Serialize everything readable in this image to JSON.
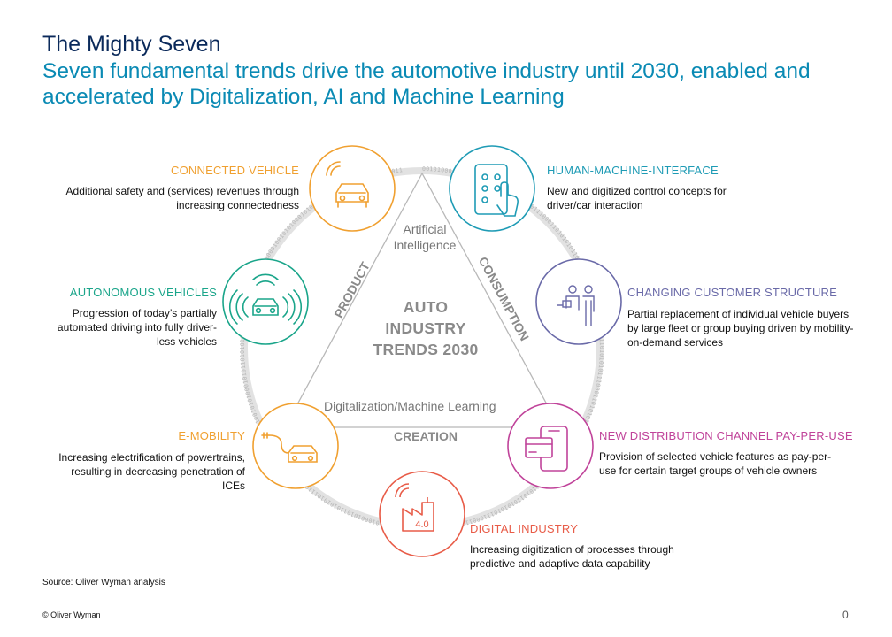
{
  "header": {
    "title": "The Mighty Seven",
    "subtitle": "Seven fundamental trends drive the automotive industry until 2030, enabled and accelerated by Digitalization, AI and Machine Learning"
  },
  "center": {
    "line1": "AUTO",
    "line2": "INDUSTRY",
    "line3": "TRENDS 2030",
    "ai": "Artificial Intelligence",
    "digital": "Digitalization/Machine Learning",
    "side_left": "PRODUCT",
    "side_right": "CONSUMPTION",
    "side_bottom": "CREATION"
  },
  "trends": [
    {
      "label": "CONNECTED VEHICLE",
      "desc": "Additional safety and (services) revenues through increasing connectedness",
      "color": "#f0a030",
      "icon": "connected-car-icon"
    },
    {
      "label": "HUMAN-MACHINE-INTERFACE",
      "desc": "New and digitized control concepts for driver/car interaction",
      "color": "#1e9bb5",
      "icon": "tablet-touch-icon"
    },
    {
      "label": "CHANGING  CUSTOMER STRUCTURE",
      "desc": "Partial replacement  of individual  vehicle buyers by large fleet  or group  buying driven by mobility-on-demand  services",
      "color": "#6a6aa8",
      "icon": "customers-icon"
    },
    {
      "label": "NEW DISTRIBUTION  CHANNEL  PAY-PER-USE",
      "desc": "Provision  of selected vehicle features  as pay-per-use  for certain target groups of vehicle owners",
      "color": "#c0439a",
      "icon": "mobile-payment-icon"
    },
    {
      "label": "DIGITAL  INDUSTRY",
      "desc": "Increasing digitization of processes through predictive  and adaptive  data capability",
      "color": "#e85c48",
      "icon": "factory-4-0-icon"
    },
    {
      "label": "E-MOBILITY",
      "desc": "Increasing electrification of powertrains,  resulting  in decreasing penetration of ICEs",
      "color": "#f0a030",
      "icon": "ev-charging-icon"
    },
    {
      "label": "AUTONOMOUS VEHICLES",
      "desc": "Progression of today’s partially automated driving  into fully driver-less vehicles",
      "color": "#1aa58a",
      "icon": "autonomous-car-icon"
    }
  ],
  "factory_badge": "4.0",
  "binary": "0010100010010101000101011010101011100011010101011",
  "footer": {
    "source": "Source: Oliver Wyman analysis",
    "copyright": "© Oliver Wyman",
    "page": "0"
  }
}
